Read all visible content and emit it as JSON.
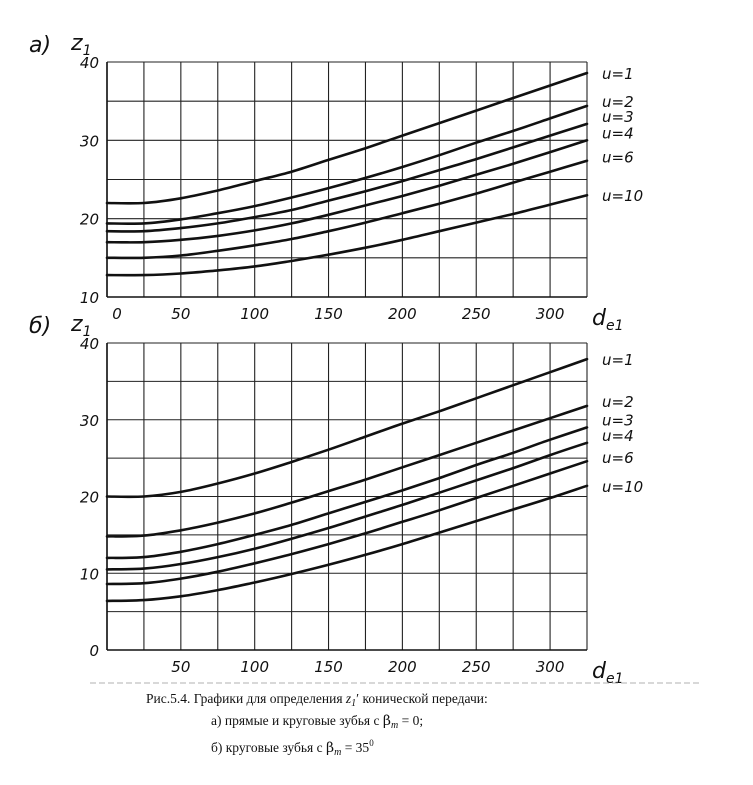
{
  "chart_data": [
    {
      "type": "line",
      "panel_label": "а)",
      "ylabel": "z",
      "ylabel_sub": "1",
      "xlabel": "d",
      "xlabel_sub": "e1",
      "xlim": [
        0,
        325
      ],
      "ylim": [
        10,
        40
      ],
      "x_ticks": [
        0,
        50,
        100,
        150,
        200,
        250,
        300
      ],
      "x_tick_labels": [
        "0",
        "50",
        "100",
        "150",
        "200",
        "250",
        "300"
      ],
      "y_ticks": [
        10,
        20,
        30,
        40
      ],
      "y_tick_labels": [
        "10",
        "20",
        "30",
        "40"
      ],
      "grid": true,
      "x": [
        0,
        25,
        50,
        75,
        100,
        125,
        150,
        175,
        200,
        225,
        250,
        275,
        300,
        325
      ],
      "series": [
        {
          "name": "u=1",
          "values": [
            22.0,
            22.0,
            22.6,
            23.6,
            24.8,
            26.0,
            27.5,
            29.0,
            30.6,
            32.2,
            33.8,
            35.4,
            37.0,
            38.6
          ]
        },
        {
          "name": "u=2",
          "values": [
            19.4,
            19.4,
            19.9,
            20.7,
            21.6,
            22.7,
            23.9,
            25.2,
            26.6,
            28.1,
            29.7,
            31.2,
            32.8,
            34.4
          ]
        },
        {
          "name": "u=3",
          "values": [
            18.4,
            18.4,
            18.8,
            19.4,
            20.2,
            21.1,
            22.3,
            23.5,
            24.8,
            26.2,
            27.6,
            29.1,
            30.6,
            32.1
          ]
        },
        {
          "name": "u=4",
          "values": [
            17.0,
            17.0,
            17.3,
            17.8,
            18.5,
            19.4,
            20.5,
            21.7,
            22.9,
            24.2,
            25.6,
            27.0,
            28.5,
            30.0
          ]
        },
        {
          "name": "u=6",
          "values": [
            15.0,
            15.0,
            15.3,
            15.9,
            16.6,
            17.4,
            18.4,
            19.5,
            20.7,
            21.9,
            23.2,
            24.6,
            26.0,
            27.4
          ]
        },
        {
          "name": "u=10",
          "values": [
            12.8,
            12.8,
            13.0,
            13.4,
            13.9,
            14.6,
            15.4,
            16.3,
            17.3,
            18.4,
            19.5,
            20.6,
            21.8,
            23.0
          ]
        }
      ]
    },
    {
      "type": "line",
      "panel_label": "б)",
      "ylabel": "z",
      "ylabel_sub": "1",
      "xlabel": "d",
      "xlabel_sub": "e1",
      "xlim": [
        0,
        325
      ],
      "ylim": [
        0,
        40
      ],
      "x_ticks": [
        50,
        100,
        150,
        200,
        250,
        300
      ],
      "x_tick_labels": [
        "50",
        "100",
        "150",
        "200",
        "250",
        "300"
      ],
      "y_ticks": [
        0,
        10,
        20,
        30,
        40
      ],
      "y_tick_labels": [
        "0",
        "10",
        "20",
        "30",
        "40"
      ],
      "grid": true,
      "x": [
        0,
        25,
        50,
        75,
        100,
        125,
        150,
        175,
        200,
        225,
        250,
        275,
        300,
        325
      ],
      "series": [
        {
          "name": "u=1",
          "values": [
            20.0,
            20.0,
            20.6,
            21.7,
            23.0,
            24.5,
            26.1,
            27.8,
            29.5,
            31.1,
            32.8,
            34.5,
            36.2,
            37.9
          ]
        },
        {
          "name": "u=2",
          "values": [
            14.8,
            14.9,
            15.6,
            16.6,
            17.8,
            19.2,
            20.7,
            22.2,
            23.8,
            25.4,
            27.0,
            28.6,
            30.2,
            31.8
          ]
        },
        {
          "name": "u=3",
          "values": [
            12.0,
            12.1,
            12.8,
            13.8,
            15.0,
            16.3,
            17.8,
            19.3,
            20.8,
            22.4,
            24.1,
            25.7,
            27.4,
            29.0
          ]
        },
        {
          "name": "u=4",
          "values": [
            10.5,
            10.6,
            11.2,
            12.1,
            13.2,
            14.5,
            15.9,
            17.4,
            18.9,
            20.5,
            22.1,
            23.7,
            25.4,
            27.0
          ]
        },
        {
          "name": "u=6",
          "values": [
            8.6,
            8.7,
            9.3,
            10.2,
            11.3,
            12.5,
            13.8,
            15.2,
            16.7,
            18.2,
            19.8,
            21.4,
            23.0,
            24.6
          ]
        },
        {
          "name": "u=10",
          "values": [
            6.4,
            6.5,
            7.0,
            7.8,
            8.8,
            9.9,
            11.1,
            12.4,
            13.8,
            15.3,
            16.8,
            18.3,
            19.8,
            21.4
          ]
        }
      ]
    }
  ],
  "caption": {
    "line1_prefix": "Рис.5.4. Графики для определения ",
    "line1_var": "z",
    "line1_sub": "1",
    "line1_prime": "′",
    "line1_suffix": " конической передачи:",
    "line2_prefix": "а) прямые и круговые зубья с ",
    "line2_beta": "β",
    "line2_sub": "m",
    "line2_suffix": " = 0;",
    "line3_prefix": "б) круговые зубья с ",
    "line3_beta": "β",
    "line3_sub": "m",
    "line3_value": " = 35",
    "line3_sup": "0"
  }
}
